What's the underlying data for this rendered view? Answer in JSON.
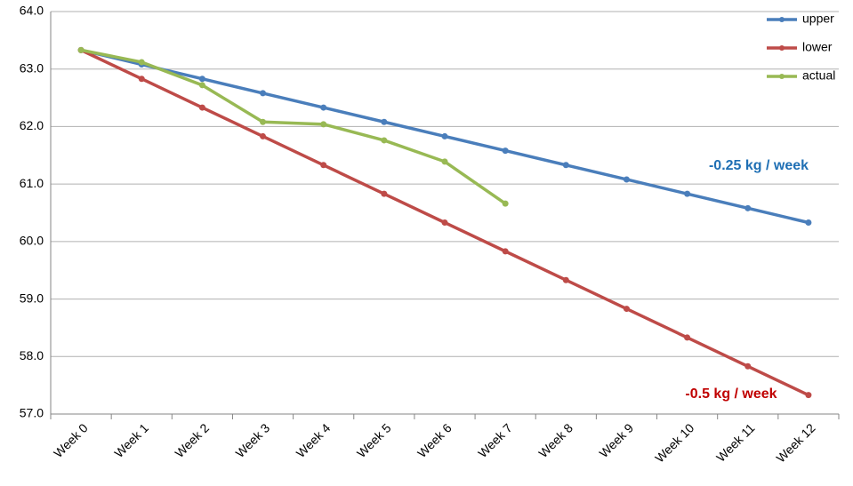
{
  "chart_data": {
    "type": "line",
    "categories": [
      "Week 0",
      "Week 1",
      "Week 2",
      "Week 3",
      "Week 4",
      "Week 5",
      "Week 6",
      "Week 7",
      "Week 8",
      "Week 9",
      "Week 10",
      "Week 11",
      "Week 12"
    ],
    "series": [
      {
        "name": "upper",
        "color": "#4a7ebb",
        "values": [
          63.33,
          63.08,
          62.83,
          62.58,
          62.33,
          62.08,
          61.83,
          61.58,
          61.33,
          61.08,
          60.83,
          60.58,
          60.33
        ]
      },
      {
        "name": "lower",
        "color": "#be4b48",
        "values": [
          63.33,
          62.83,
          62.33,
          61.83,
          61.33,
          60.83,
          60.33,
          59.83,
          59.33,
          58.83,
          58.33,
          57.83,
          57.33
        ]
      },
      {
        "name": "actual",
        "color": "#98b954",
        "values": [
          63.33,
          63.12,
          62.72,
          62.08,
          62.04,
          61.76,
          61.39,
          60.66,
          null,
          null,
          null,
          null,
          null
        ]
      }
    ],
    "ylim": [
      57,
      64
    ],
    "yticks": [
      {
        "value": 57,
        "label": "57.0"
      },
      {
        "value": 58,
        "label": "58.0"
      },
      {
        "value": 59,
        "label": "59.0"
      },
      {
        "value": 60,
        "label": "60.0"
      },
      {
        "value": 61,
        "label": "61.0"
      },
      {
        "value": 62,
        "label": "62.0"
      },
      {
        "value": 63,
        "label": "63.0"
      },
      {
        "value": 64,
        "label": "64.0"
      }
    ],
    "grid": true,
    "legend": "upper-right",
    "annotations": [
      {
        "text": "-0.25 kg / week",
        "color": "#1f6fb4"
      },
      {
        "text": "-0.5 kg / week",
        "color": "#c00000"
      }
    ]
  }
}
